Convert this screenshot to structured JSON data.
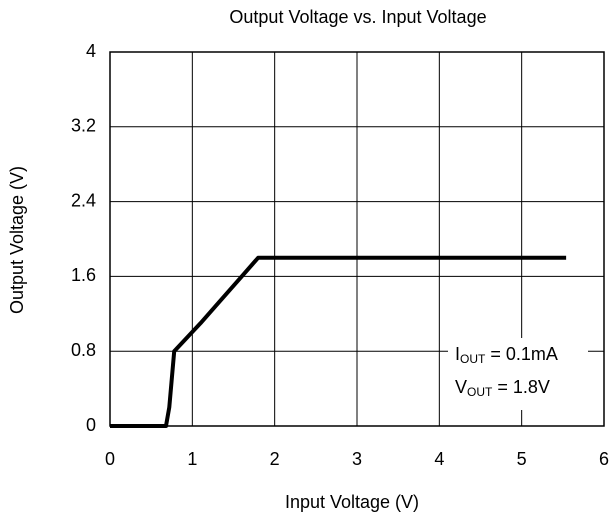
{
  "chart_data": {
    "type": "line",
    "title": "Output Voltage vs. Input Voltage",
    "x_label": "Input Voltage (V)",
    "y_label": "Output Voltage (V)",
    "x": [
      0,
      0.68,
      0.72,
      0.78,
      1.1,
      1.3,
      1.6,
      1.8,
      5.54
    ],
    "series": [
      {
        "name": "Output Voltage",
        "color": "#000000",
        "values": [
          0,
          0,
          0.2,
          0.8,
          1.1,
          1.3,
          1.6,
          1.8,
          1.8
        ]
      }
    ],
    "xlim": [
      0,
      6
    ],
    "xticks": [
      0,
      1,
      2,
      3,
      4,
      5,
      6
    ],
    "ylim": [
      0,
      4
    ],
    "yticks": [
      0,
      0.8,
      1.6,
      2.4,
      3.2,
      4
    ],
    "grid": true,
    "annotations": [
      {
        "main": "I",
        "sub": "OUT",
        "rest": " = 0.1mA"
      },
      {
        "main": "V",
        "sub": "OUT",
        "rest": " = 1.8V"
      }
    ]
  }
}
